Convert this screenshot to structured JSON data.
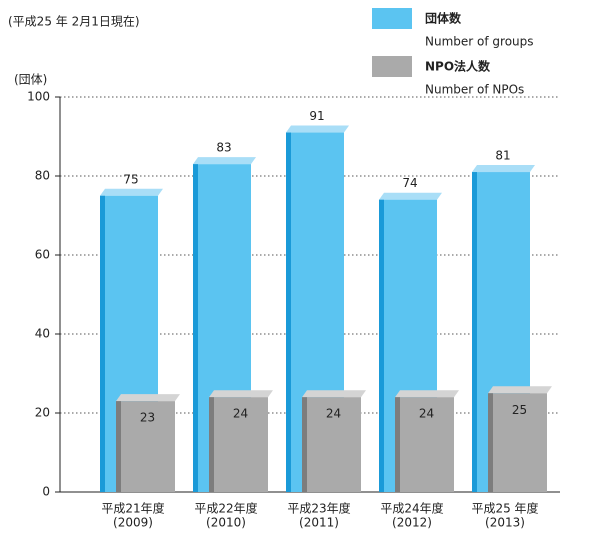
{
  "chart_data": {
    "type": "bar",
    "note": "(平成25 年 2月1日現在)",
    "y_axis_label": "(団体)",
    "categories": [
      "平成21年度",
      "平成22年度",
      "平成23年度",
      "平成24年度",
      "平成25 年度"
    ],
    "category_years": [
      "(2009)",
      "(2010)",
      "(2011)",
      "(2012)",
      "(2013)"
    ],
    "series": [
      {
        "name": "団体数",
        "name_en": "Number of groups",
        "color": "#5bc4f1",
        "values": [
          75,
          83,
          91,
          74,
          81
        ]
      },
      {
        "name": "NPO法人数",
        "name_en": "Number of NPOs",
        "color": "#aaaaaa",
        "values": [
          23,
          24,
          24,
          24,
          25
        ]
      }
    ],
    "ylim": [
      0,
      100
    ],
    "yticks": [
      0,
      20,
      40,
      60,
      80,
      100
    ],
    "grid": true
  }
}
